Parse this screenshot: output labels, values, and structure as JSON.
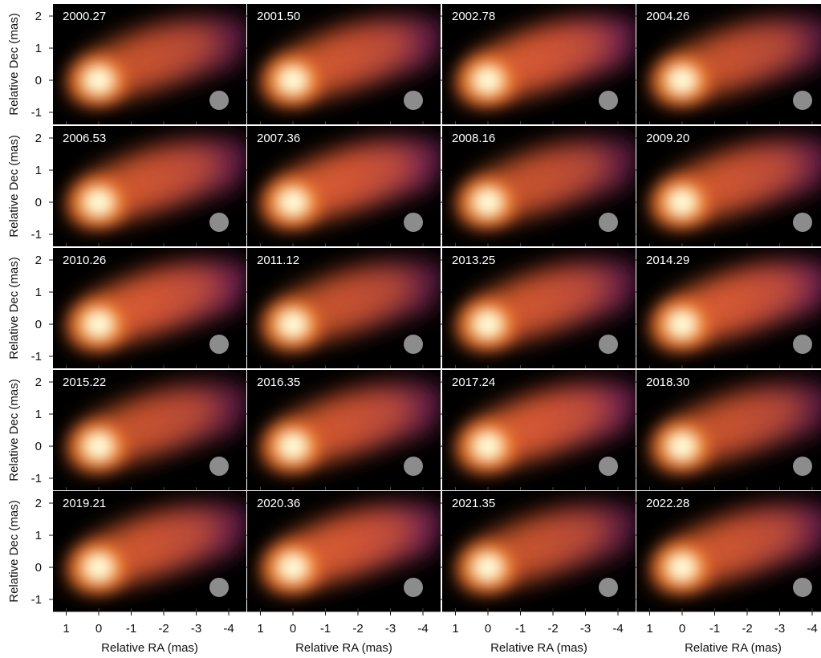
{
  "figure": {
    "type": "image-grid",
    "rows": 5,
    "cols": 4,
    "panels": [
      {
        "epoch": "2000.27"
      },
      {
        "epoch": "2001.50"
      },
      {
        "epoch": "2002.78"
      },
      {
        "epoch": "2004.26"
      },
      {
        "epoch": "2006.53"
      },
      {
        "epoch": "2007.36"
      },
      {
        "epoch": "2008.16"
      },
      {
        "epoch": "2009.20"
      },
      {
        "epoch": "2010.26"
      },
      {
        "epoch": "2011.12"
      },
      {
        "epoch": "2013.25"
      },
      {
        "epoch": "2014.29"
      },
      {
        "epoch": "2015.22"
      },
      {
        "epoch": "2016.35"
      },
      {
        "epoch": "2017.24"
      },
      {
        "epoch": "2018.30"
      },
      {
        "epoch": "2019.21"
      },
      {
        "epoch": "2020.36"
      },
      {
        "epoch": "2021.35"
      },
      {
        "epoch": "2022.28"
      }
    ],
    "x_axis": {
      "label": "Relative RA (mas)",
      "ticks": [
        "1",
        "0",
        "-1",
        "-2",
        "-3",
        "-4"
      ],
      "values": [
        1,
        0,
        -1,
        -2,
        -3,
        -4
      ]
    },
    "y_axis": {
      "label": "Relative Dec (mas)",
      "ticks": [
        "2",
        "1",
        "0",
        "-1"
      ],
      "values": [
        2,
        1,
        0,
        -1
      ]
    },
    "colormap": "inferno",
    "beam_color": "#8c8c8c"
  }
}
